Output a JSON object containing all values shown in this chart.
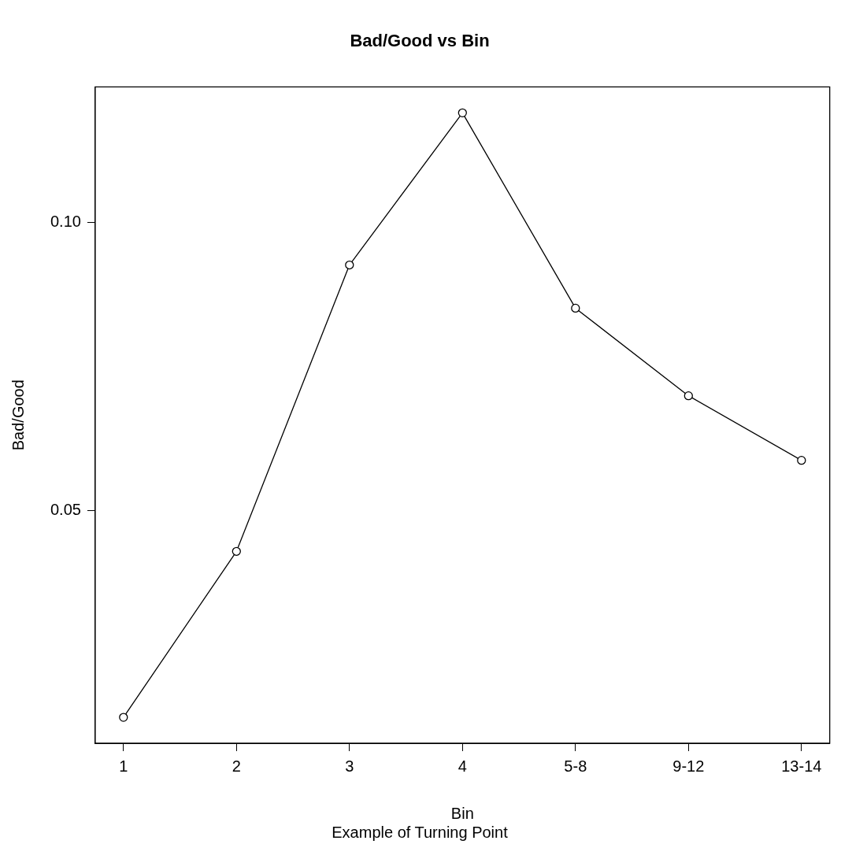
{
  "chart_data": {
    "type": "line",
    "title": "Bad/Good vs Bin",
    "subtitle": "Example of Turning Point",
    "xlabel": "Bin",
    "ylabel": "Bad/Good",
    "categories": [
      "1",
      "2",
      "3",
      "4",
      "5-8",
      "9-12",
      "13-14"
    ],
    "series": [
      {
        "color": "#000000",
        "values": [
          0.0141,
          0.0429,
          0.0926,
          0.119,
          0.0851,
          0.0699,
          0.0587
        ]
      }
    ],
    "ylim": [
      0.0096,
      0.1235
    ],
    "yticks": [
      {
        "value": 0.05,
        "label": "0.05"
      },
      {
        "value": 0.1,
        "label": "0.10"
      }
    ],
    "grid": false,
    "legend": false,
    "marker": "circle",
    "line_style": "solid"
  }
}
